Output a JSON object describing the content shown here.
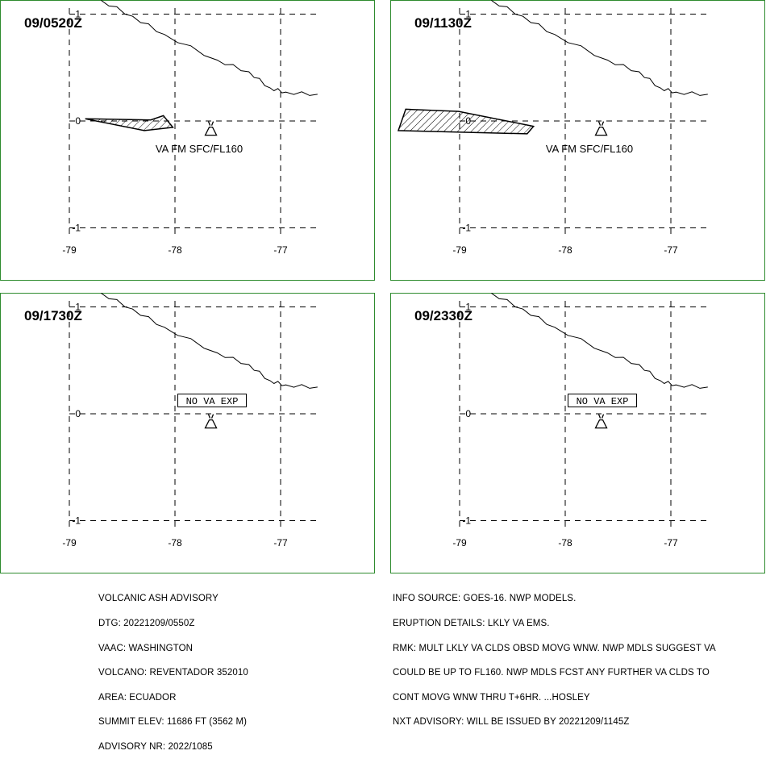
{
  "panels": [
    {
      "time": "09/0520Z",
      "label": "VA FM SFC/FL160",
      "no_va": "",
      "ash_polygon": [
        [
          -78.85,
          0.02
        ],
        [
          -78.23,
          0.01
        ],
        [
          -78.11,
          0.05
        ],
        [
          -78.02,
          -0.06
        ],
        [
          -78.29,
          -0.09
        ]
      ]
    },
    {
      "time": "09/1130Z",
      "label": "VA FM SFC/FL160",
      "no_va": "",
      "ash_polygon": [
        [
          -79.51,
          0.11
        ],
        [
          -79.01,
          0.09
        ],
        [
          -78.3,
          -0.05
        ],
        [
          -78.36,
          -0.12
        ],
        [
          -79.58,
          -0.09
        ]
      ]
    },
    {
      "time": "09/1730Z",
      "label": "",
      "no_va": "NO VA EXP",
      "ash_polygon": []
    },
    {
      "time": "09/2330Z",
      "label": "",
      "no_va": "NO VA EXP",
      "ash_polygon": []
    }
  ],
  "axes": {
    "lon_ticks": [
      "-79",
      "-78",
      "-77"
    ],
    "lat_ticks": [
      "1",
      "0",
      "-1"
    ]
  },
  "map_data": {
    "projection": "lat/lon grid",
    "lon_range": [
      -79.1,
      -76.6
    ],
    "lat_range": [
      -1.17,
      1.17
    ],
    "volcano": {
      "name": "REVENTADOR",
      "lon": -77.66,
      "lat": -0.08
    },
    "border_line": [
      [
        -78.7,
        1.13
      ],
      [
        -78.4,
        0.98
      ],
      [
        -78.1,
        0.81
      ],
      [
        -77.6,
        0.57
      ],
      [
        -77.3,
        0.46
      ],
      [
        -77.1,
        0.31
      ],
      [
        -76.95,
        0.27
      ],
      [
        -76.65,
        0.25
      ]
    ]
  },
  "advisory_left": [
    "VOLCANIC ASH ADVISORY",
    "DTG: 20221209/0550Z",
    "VAAC: WASHINGTON",
    "VOLCANO: REVENTADOR 352010",
    "AREA: ECUADOR",
    "SUMMIT ELEV: 11686 FT (3562 M)",
    "ADVISORY NR: 2022/1085"
  ],
  "advisory_right": [
    "INFO SOURCE: GOES-16. NWP MODELS.",
    "ERUPTION DETAILS: LKLY VA EMS.",
    "RMK: MULT LKLY VA CLDS OBSD MOVG WNW. NWP MDLS SUGGEST VA",
    "COULD BE UP TO FL160. NWP MDLS FCST ANY FURTHER VA CLDS TO",
    "CONT MOVG WNW THRU T+6HR. ...HOSLEY",
    "NXT ADVISORY: WILL BE ISSUED BY 20221209/1145Z"
  ],
  "colors": {
    "frame": "#2e8b2e",
    "line": "#000000"
  }
}
